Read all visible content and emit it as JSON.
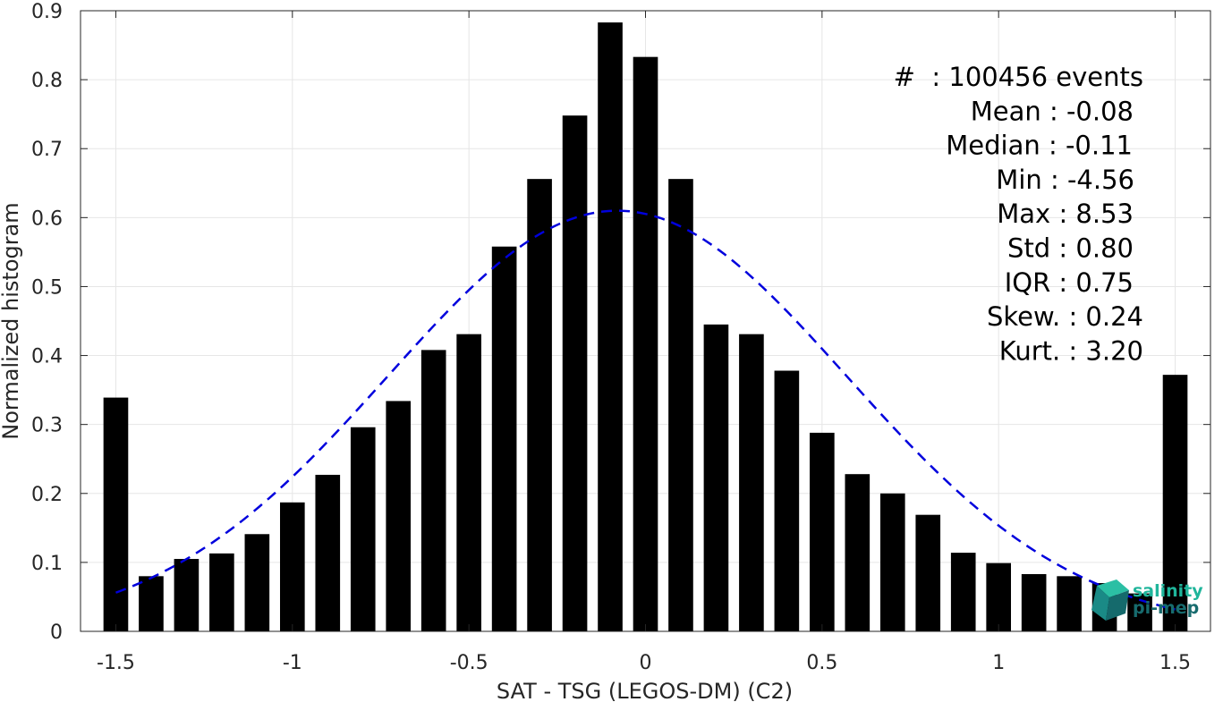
{
  "chart_data": {
    "type": "bar",
    "xlabel": "SAT - TSG (LEGOS-DM) (C2)",
    "ylabel": "Normalized histogram",
    "xlim": [
      -1.6,
      1.6
    ],
    "ylim": [
      0,
      0.9
    ],
    "grid": true,
    "x_ticks": [
      "-1.5",
      "-1",
      "-0.5",
      "0",
      "0.5",
      "1",
      "1.5"
    ],
    "x_tick_values": [
      -1.5,
      -1,
      -0.5,
      0,
      0.5,
      1,
      1.5
    ],
    "y_ticks": [
      "0",
      "0.1",
      "0.2",
      "0.3",
      "0.4",
      "0.5",
      "0.6",
      "0.7",
      "0.8",
      "0.9"
    ],
    "y_tick_values": [
      0,
      0.1,
      0.2,
      0.3,
      0.4,
      0.5,
      0.6,
      0.7,
      0.8,
      0.9
    ],
    "bar_width": 0.07,
    "bars": {
      "x": [
        -1.5,
        -1.4,
        -1.3,
        -1.2,
        -1.1,
        -1.0,
        -0.9,
        -0.8,
        -0.7,
        -0.6,
        -0.5,
        -0.4,
        -0.3,
        -0.2,
        -0.1,
        0.0,
        0.1,
        0.2,
        0.3,
        0.4,
        0.5,
        0.6,
        0.7,
        0.8,
        0.9,
        1.0,
        1.1,
        1.2,
        1.3,
        1.4,
        1.5
      ],
      "values": [
        0.339,
        0.08,
        0.105,
        0.113,
        0.141,
        0.187,
        0.227,
        0.296,
        0.334,
        0.408,
        0.431,
        0.558,
        0.656,
        0.748,
        0.883,
        0.833,
        0.656,
        0.445,
        0.431,
        0.378,
        0.288,
        0.228,
        0.2,
        0.169,
        0.114,
        0.099,
        0.083,
        0.08,
        0.07,
        0.055,
        0.372
      ],
      "color": "#000000"
    },
    "fit_curve": {
      "style": "dashed",
      "color": "#0000dd",
      "mean": -0.08,
      "std": 0.65,
      "peak": 0.61,
      "x_range": [
        -1.5,
        1.5
      ]
    },
    "stats": [
      {
        "label": "#  : 100456 events"
      },
      {
        "label": "Mean : -0.08"
      },
      {
        "label": "Median : -0.11"
      },
      {
        "label": "Min : -4.56"
      },
      {
        "label": "Max : 8.53"
      },
      {
        "label": "Std : 0.80"
      },
      {
        "label": "IQR : 0.75"
      },
      {
        "label": "Skew. : 0.24"
      },
      {
        "label": "Kurt. : 3.20"
      }
    ]
  },
  "logo": {
    "line1": "salinity",
    "line2": "pi-mep",
    "color1": "#1fb59b",
    "color2": "#176b6e"
  }
}
